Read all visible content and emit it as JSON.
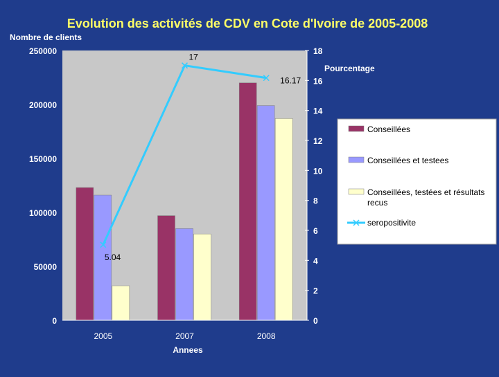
{
  "colors": {
    "background": "#1f3c8c",
    "plot_area": "#c8c8c8",
    "title": "#ffff66",
    "text": "#ffffff",
    "conseillees": "#993366",
    "conseillees_testees": "#9999ff",
    "conseillees_resultats": "#ffffcc",
    "seropositivite": "#33ccff"
  },
  "chart_data": {
    "type": "bar",
    "title": "Evolution des activités de CDV en Cote d'Ivoire de 2005-2008",
    "xlabel": "Annees",
    "ylabel": "Nombre de clients",
    "y2label": "Pourcentage",
    "categories": [
      "2005",
      "2007",
      "2008"
    ],
    "ylim": [
      0,
      250000
    ],
    "y2lim": [
      0,
      18
    ],
    "yticks": [
      0,
      50000,
      100000,
      150000,
      200000,
      250000
    ],
    "y2ticks": [
      0,
      2,
      4,
      6,
      8,
      10,
      12,
      14,
      16,
      18
    ],
    "series": [
      {
        "name": "Conseillées",
        "type": "bar",
        "values": [
          123000,
          97000,
          220000
        ]
      },
      {
        "name": "Conseillées et testees",
        "type": "bar",
        "values": [
          116000,
          85000,
          199000
        ]
      },
      {
        "name": "Conseillées, testées et résultats recus",
        "type": "bar",
        "values": [
          32000,
          80000,
          187000
        ]
      },
      {
        "name": "seropositivite",
        "type": "line",
        "axis": "secondary",
        "values": [
          5.04,
          17,
          16.17
        ],
        "labels": [
          "5.04",
          "17",
          "16.17"
        ]
      }
    ],
    "legend": "right"
  }
}
